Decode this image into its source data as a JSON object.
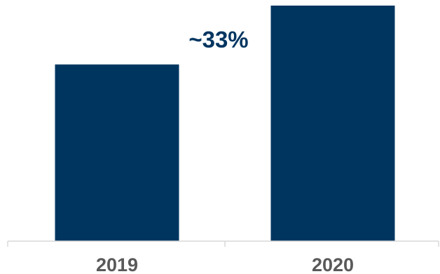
{
  "chart_data": {
    "type": "bar",
    "categories": [
      "2019",
      "2020"
    ],
    "values": [
      75,
      100
    ],
    "ylim": [
      0,
      100
    ],
    "annotation": "~33%",
    "grid": false,
    "legend": "none",
    "bar_color": "#003560",
    "axis_color": "#d9d9d9",
    "label_color": "#595959"
  }
}
